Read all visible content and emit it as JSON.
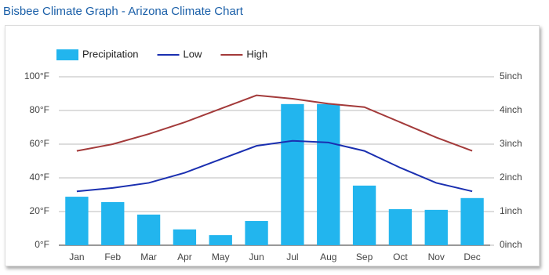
{
  "chart_data": {
    "type": "combo",
    "title": "Bisbee Climate Graph - Arizona Climate Chart",
    "categories": [
      "Jan",
      "Feb",
      "Mar",
      "Apr",
      "May",
      "Jun",
      "Jul",
      "Aug",
      "Sep",
      "Oct",
      "Nov",
      "Dec"
    ],
    "series": [
      {
        "name": "Precipitation",
        "type": "bar",
        "axis": "y2",
        "color": "#22b5ee",
        "values": [
          1.44,
          1.28,
          0.91,
          0.47,
          0.3,
          0.72,
          4.19,
          4.19,
          1.77,
          1.07,
          1.05,
          1.4
        ]
      },
      {
        "name": "Low",
        "type": "line",
        "color": "#1a2fb0",
        "values": [
          32,
          34,
          37,
          43,
          51,
          59,
          62,
          61,
          56,
          46,
          37,
          32
        ]
      },
      {
        "name": "High",
        "type": "line",
        "color": "#a33a3a",
        "values": [
          56,
          60,
          66,
          73,
          81,
          89,
          87,
          84,
          82,
          73,
          64,
          56
        ]
      }
    ],
    "ylim": [
      0,
      100
    ],
    "yticks": [
      {
        "value": 0,
        "label": "0°F"
      },
      {
        "value": 20,
        "label": "20°F"
      },
      {
        "value": 40,
        "label": "40°F"
      },
      {
        "value": 60,
        "label": "60°F"
      },
      {
        "value": 80,
        "label": "80°F"
      },
      {
        "value": 100,
        "label": "100°F"
      }
    ],
    "y2lim": [
      0,
      5
    ],
    "y2ticks": [
      {
        "value": 0,
        "label": "0inch"
      },
      {
        "value": 1,
        "label": "1inch"
      },
      {
        "value": 2,
        "label": "2inch"
      },
      {
        "value": 3,
        "label": "3inch"
      },
      {
        "value": 4,
        "label": "4inch"
      },
      {
        "value": 5,
        "label": "5inch"
      }
    ],
    "grid": true,
    "legend": "top"
  }
}
